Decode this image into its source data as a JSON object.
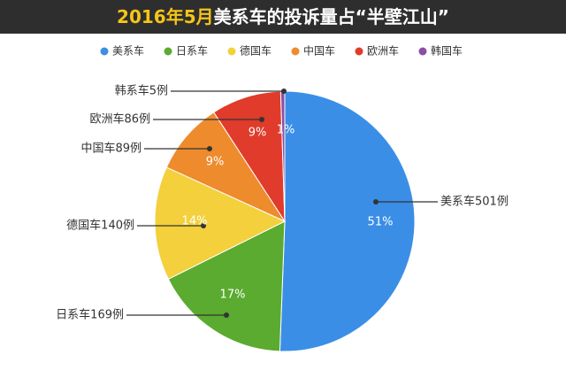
{
  "chart_data": {
    "type": "pie",
    "title": [
      "2016年5月",
      "美系车的投诉量占“半壁江山”"
    ],
    "categories": [
      "美系车",
      "日系车",
      "德国车",
      "中国车",
      "欧洲车",
      "韩国车"
    ],
    "values": [
      501,
      169,
      140,
      89,
      86,
      5
    ],
    "value_labels": [
      "美系车501例",
      "日系车169例",
      "德国车140例",
      "中国车89例",
      "欧洲车86例",
      "韩系车5例"
    ],
    "percent_labels": [
      "51%",
      "17%",
      "14%",
      "9%",
      "9%",
      "1%"
    ],
    "colors": [
      "#3b8ee6",
      "#5aab2f",
      "#f3d03c",
      "#ee8b2d",
      "#e03b2b",
      "#8a4fa6"
    ],
    "legend": "top"
  }
}
